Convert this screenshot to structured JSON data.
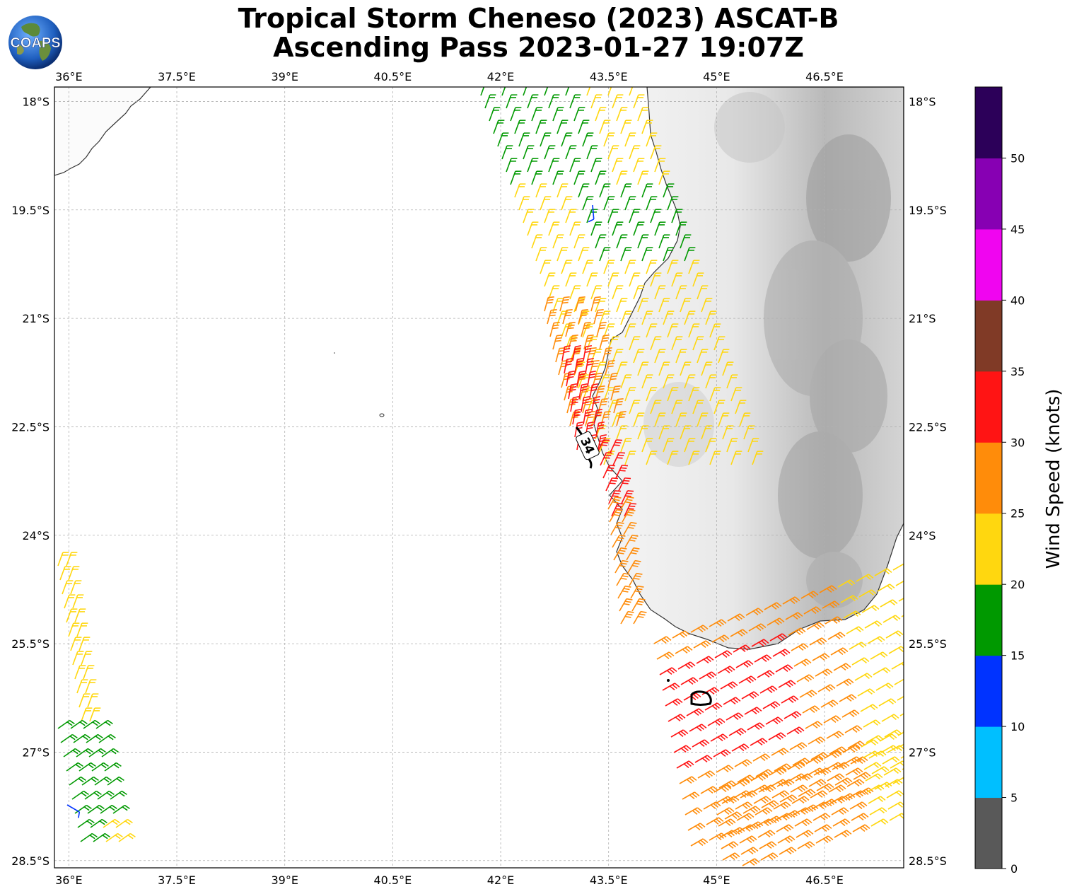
{
  "title": {
    "line1": "Tropical Storm Cheneso (2023) ASCAT-B",
    "line2": "Ascending Pass 2023-01-27 19:07Z"
  },
  "logo": {
    "text": "COAPS",
    "icon": "globe-logo-icon"
  },
  "map": {
    "lon_range": [
      35.8,
      47.6
    ],
    "lat_range": [
      -28.6,
      -17.8
    ],
    "lon_ticks": [
      "36°E",
      "37.5°E",
      "39°E",
      "40.5°E",
      "42°E",
      "43.5°E",
      "45°E",
      "46.5°E"
    ],
    "lat_ticks": [
      "18°S",
      "19.5°S",
      "21°S",
      "22.5°S",
      "24°S",
      "25.5°S",
      "27°S",
      "28.5°S"
    ],
    "contour_label": "34",
    "gridlines": true,
    "land_shading": "grayscale terrain (Madagascar)"
  },
  "colorbar": {
    "label": "Wind Speed (knots)",
    "ticks": [
      "0",
      "5",
      "10",
      "15",
      "20",
      "25",
      "30",
      "35",
      "40",
      "45",
      "50"
    ],
    "bins": [
      {
        "range": "0-5",
        "color": "#595959"
      },
      {
        "range": "5-10",
        "color": "#00bfff"
      },
      {
        "range": "10-15",
        "color": "#0033ff"
      },
      {
        "range": "15-20",
        "color": "#009900"
      },
      {
        "range": "20-25",
        "color": "#ffd70f"
      },
      {
        "range": "25-30",
        "color": "#ff8c0a"
      },
      {
        "range": "30-35",
        "color": "#ff1414"
      },
      {
        "range": "35-40",
        "color": "#803a26"
      },
      {
        "range": "40-45",
        "color": "#f005f0"
      },
      {
        "range": "45-50",
        "color": "#8700b3"
      },
      {
        "range": "50+",
        "color": "#2c0059"
      }
    ]
  }
}
